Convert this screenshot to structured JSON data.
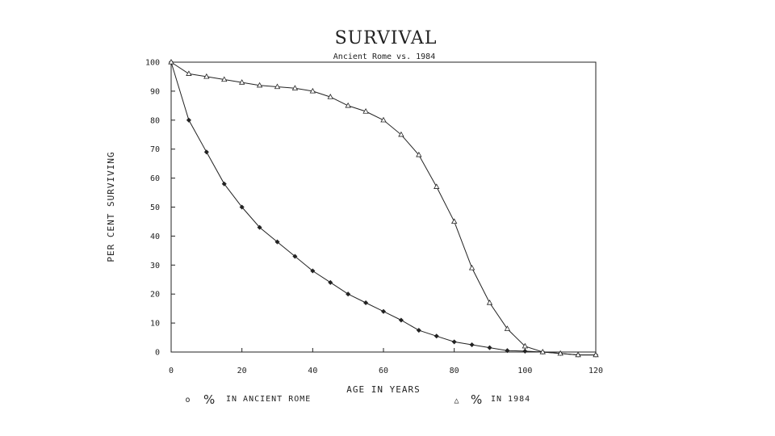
{
  "chart_data": {
    "type": "line",
    "title": "SURVIVAL",
    "subtitle": "Ancient Rome vs. 1984",
    "xlabel": "AGE IN YEARS",
    "ylabel": "PER CENT SURVIVING",
    "xlim": [
      0,
      120
    ],
    "ylim": [
      0,
      100
    ],
    "x_ticks": [
      "0",
      "20",
      "40",
      "60",
      "80",
      "100",
      "120"
    ],
    "y_ticks": [
      "0",
      "10",
      "20",
      "30",
      "40",
      "50",
      "60",
      "70",
      "80",
      "90",
      "100"
    ],
    "grid": false,
    "legend_position": "bottom",
    "series": [
      {
        "name": "% IN ANCIENT ROME",
        "legend_symbol": "o",
        "legend_pct": "%",
        "legend_text": "IN ANCIENT  ROME",
        "marker": "diamond",
        "x": [
          0,
          5,
          10,
          15,
          20,
          25,
          30,
          35,
          40,
          45,
          50,
          55,
          60,
          65,
          70,
          75,
          80,
          85,
          90,
          95,
          100,
          105,
          110,
          115,
          120
        ],
        "y": [
          100,
          80,
          69,
          58,
          50,
          43,
          38,
          33,
          28,
          24,
          20,
          17,
          14,
          11,
          7.5,
          5.5,
          3.5,
          2.5,
          1.5,
          0.5,
          0.3,
          0,
          -0.5,
          -1,
          -1
        ]
      },
      {
        "name": "% IN 1984",
        "legend_symbol": "△",
        "legend_pct": "%",
        "legend_text": "IN 1984",
        "marker": "triangle",
        "x": [
          0,
          5,
          10,
          15,
          20,
          25,
          30,
          35,
          40,
          45,
          50,
          55,
          60,
          65,
          70,
          75,
          80,
          85,
          90,
          95,
          100,
          105,
          110,
          115,
          120
        ],
        "y": [
          100,
          96,
          95,
          94,
          93,
          92,
          91.5,
          91,
          90,
          88,
          85,
          83,
          80,
          75,
          68,
          57,
          45,
          29,
          17,
          8,
          2,
          0,
          -0.5,
          -1,
          -1
        ]
      }
    ]
  }
}
